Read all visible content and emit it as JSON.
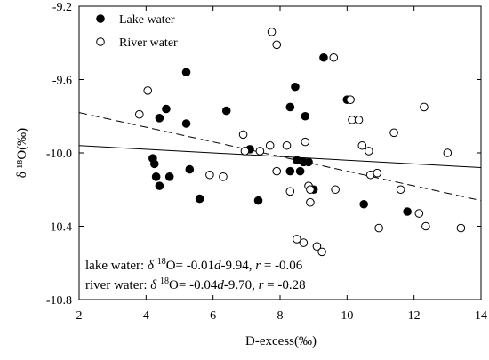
{
  "chart_data": {
    "type": "scatter",
    "xlabel": "D-excess(‰)",
    "ylabel": "δ ¹⁸O(‰)",
    "xlim": [
      2,
      14
    ],
    "ylim": [
      -10.8,
      -9.2
    ],
    "xticks": [
      2,
      4,
      6,
      8,
      10,
      12,
      14
    ],
    "yticks": [
      -9.2,
      -9.6,
      -10.0,
      -10.4,
      -10.8
    ],
    "ytick_labels": [
      "-9.2",
      "-9.6",
      "-10.0",
      "-10.4",
      "-10.8"
    ],
    "grid": false,
    "legend_position": "top-left",
    "series": [
      {
        "name": "Lake water",
        "marker": "filled-circle",
        "color": "#000000",
        "points": [
          [
            4.2,
            -10.03
          ],
          [
            4.25,
            -10.06
          ],
          [
            4.3,
            -10.13
          ],
          [
            4.4,
            -9.81
          ],
          [
            4.4,
            -10.18
          ],
          [
            4.6,
            -9.76
          ],
          [
            4.7,
            -10.13
          ],
          [
            5.2,
            -9.56
          ],
          [
            5.2,
            -9.84
          ],
          [
            5.3,
            -10.09
          ],
          [
            5.6,
            -10.25
          ],
          [
            6.4,
            -9.77
          ],
          [
            7.1,
            -9.98
          ],
          [
            7.35,
            -10.26
          ],
          [
            8.3,
            -9.75
          ],
          [
            8.3,
            -10.1
          ],
          [
            8.45,
            -9.64
          ],
          [
            8.5,
            -10.04
          ],
          [
            8.6,
            -10.1
          ],
          [
            8.7,
            -10.05
          ],
          [
            8.75,
            -9.8
          ],
          [
            8.85,
            -10.05
          ],
          [
            9.0,
            -10.2
          ],
          [
            9.3,
            -9.48
          ],
          [
            10.0,
            -9.71
          ],
          [
            10.5,
            -10.28
          ],
          [
            11.8,
            -10.32
          ]
        ]
      },
      {
        "name": "River water",
        "marker": "open-circle",
        "color": "#000000",
        "points": [
          [
            3.8,
            -9.79
          ],
          [
            4.05,
            -9.66
          ],
          [
            5.9,
            -10.12
          ],
          [
            6.3,
            -10.13
          ],
          [
            6.9,
            -9.9
          ],
          [
            6.95,
            -9.99
          ],
          [
            7.4,
            -9.99
          ],
          [
            7.7,
            -9.96
          ],
          [
            7.75,
            -9.34
          ],
          [
            7.9,
            -9.41
          ],
          [
            7.9,
            -10.1
          ],
          [
            8.2,
            -9.96
          ],
          [
            8.3,
            -10.21
          ],
          [
            8.5,
            -10.47
          ],
          [
            8.7,
            -10.49
          ],
          [
            8.75,
            -9.94
          ],
          [
            8.85,
            -10.18
          ],
          [
            8.9,
            -10.2
          ],
          [
            8.9,
            -10.27
          ],
          [
            9.1,
            -10.51
          ],
          [
            9.25,
            -10.54
          ],
          [
            9.6,
            -9.48
          ],
          [
            9.65,
            -10.2
          ],
          [
            10.1,
            -9.71
          ],
          [
            10.15,
            -9.82
          ],
          [
            10.35,
            -9.82
          ],
          [
            10.45,
            -9.96
          ],
          [
            10.65,
            -9.99
          ],
          [
            10.7,
            -10.12
          ],
          [
            10.9,
            -10.11
          ],
          [
            10.95,
            -10.41
          ],
          [
            11.4,
            -9.89
          ],
          [
            11.6,
            -10.2
          ],
          [
            12.15,
            -10.33
          ],
          [
            12.3,
            -9.75
          ],
          [
            12.35,
            -10.4
          ],
          [
            13.0,
            -10.0
          ],
          [
            13.4,
            -10.41
          ]
        ]
      }
    ],
    "fit_lines": [
      {
        "series": "Lake water",
        "style": "solid",
        "slope": -0.01,
        "intercept": -9.94
      },
      {
        "series": "River water",
        "style": "dashed",
        "slope": -0.04,
        "intercept": -9.7
      }
    ],
    "annotations": [
      {
        "prefix": "lake water: ",
        "delta": "δ",
        "sup": "18",
        "mid": "O= -0.01",
        "d": "d",
        "tail": "-9.94, ",
        "r": "r",
        "rval": " = -0.06"
      },
      {
        "prefix": "river water: ",
        "delta": "δ",
        "sup": "18",
        "mid": "O= -0.04",
        "d": "d",
        "tail": "-9.70, ",
        "r": "r",
        "rval": " = -0.28"
      }
    ]
  }
}
